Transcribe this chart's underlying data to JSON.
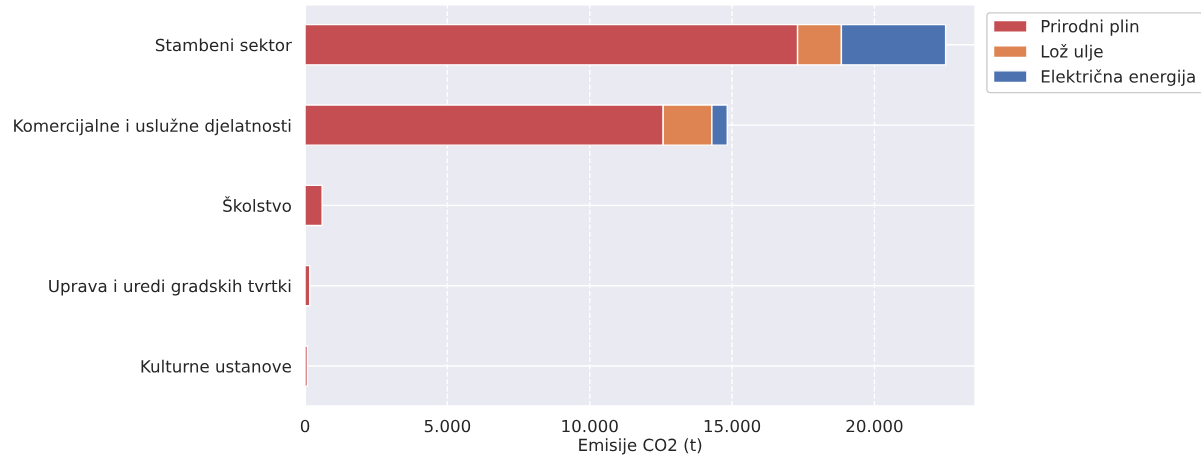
{
  "chart_data": {
    "type": "bar",
    "orientation": "horizontal",
    "stacked": true,
    "xlabel": "Emisije CO2 (t)",
    "categories": [
      "Stambeni sektor",
      "Komercijalne i uslužne djelatnosti",
      "Školstvo",
      "Uprava i uredi gradskih tvrtki",
      "Kulturne ustanove"
    ],
    "series": [
      {
        "name": "Prirodni plin",
        "color": "#c44e52",
        "values": [
          17300,
          12580,
          600,
          165,
          80
        ]
      },
      {
        "name": "Lož ulje",
        "color": "#dd8452",
        "values": [
          1540,
          1710,
          null,
          null,
          null
        ]
      },
      {
        "name": "Električna energija",
        "color": "#4c72b0",
        "values": [
          3660,
          540,
          null,
          null,
          null
        ]
      }
    ],
    "xlim": [
      0,
      23540
    ],
    "xticks": [
      0,
      {
        "value": 5000,
        "label": "5.000"
      },
      {
        "value": 10000,
        "label": "10.000"
      },
      {
        "value": 15000,
        "label": "15.000"
      },
      {
        "value": 20000,
        "label": "20.000"
      }
    ],
    "grid": true,
    "legend": "top right"
  }
}
